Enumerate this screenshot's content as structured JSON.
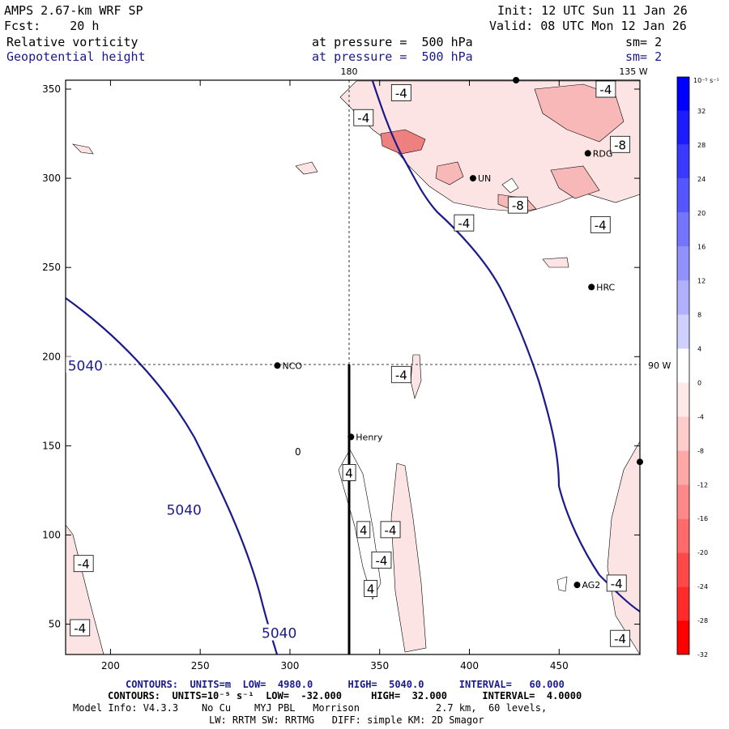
{
  "header": {
    "model": "AMPS 2.67-km WRF SP",
    "fcst": "Fcst:    20 h",
    "init": "Init: 12 UTC Sun 11 Jan 26",
    "valid": "Valid: 08 UTC Mon 12 Jan 26",
    "field1_name": "Relative vorticity",
    "field1_level": "at pressure =  500 hPa",
    "field1_sm": "sm= 2",
    "field2_name": "Geopotential height",
    "field2_level": "at pressure =  500 hPa",
    "field2_sm": "sm= 2"
  },
  "map": {
    "lon_label_top": "180",
    "lon_label_top_right": "135 W",
    "lon_label_right": "90 W",
    "x_ticks": [
      "200",
      "250",
      "300",
      "350",
      "400",
      "450"
    ],
    "y_ticks": [
      "350",
      "300",
      "250",
      "200",
      "150",
      "100",
      "50"
    ],
    "x_range": [
      175,
      495
    ],
    "y_range": [
      33,
      355
    ],
    "stations": [
      {
        "name": "RDG",
        "x": 466,
        "y": 314
      },
      {
        "name": "",
        "x": 426,
        "y": 355
      },
      {
        "name": "UN",
        "x": 402,
        "y": 300
      },
      {
        "name": "HRC",
        "x": 468,
        "y": 239
      },
      {
        "name": "NCO",
        "x": 293,
        "y": 195
      },
      {
        "name": "Henry",
        "x": 334,
        "y": 155
      },
      {
        "name": "AG2",
        "x": 460,
        "y": 72
      },
      {
        "name": "",
        "x": 495,
        "y": 141
      }
    ],
    "height_labels": [
      {
        "text": "5040",
        "x": 186,
        "y": 195
      },
      {
        "text": "5040",
        "x": 241,
        "y": 114
      },
      {
        "text": "5040",
        "x": 294,
        "y": 45
      }
    ],
    "vort_labels": [
      {
        "text": "-4",
        "x": 362,
        "y": 348
      },
      {
        "text": "-4",
        "x": 341,
        "y": 334
      },
      {
        "text": "-8",
        "x": 484,
        "y": 319
      },
      {
        "text": "-4",
        "x": 476,
        "y": 350
      },
      {
        "text": "-8",
        "x": 427,
        "y": 285
      },
      {
        "text": "-4",
        "x": 397,
        "y": 275
      },
      {
        "text": "-4",
        "x": 473,
        "y": 274
      },
      {
        "text": "-4",
        "x": 362,
        "y": 190
      },
      {
        "text": "-4",
        "x": 356,
        "y": 103
      },
      {
        "text": "-4",
        "x": 351,
        "y": 86
      },
      {
        "text": "-4",
        "x": 185,
        "y": 84
      },
      {
        "text": "-4",
        "x": 183,
        "y": 48
      },
      {
        "text": "-4",
        "x": 482,
        "y": 73
      },
      {
        "text": "-4",
        "x": 484,
        "y": 42
      },
      {
        "text": "4",
        "x": 333,
        "y": 135
      },
      {
        "text": "4",
        "x": 341,
        "y": 103
      },
      {
        "text": "4",
        "x": 345,
        "y": 70
      }
    ],
    "zero_label": "0"
  },
  "colorbar": {
    "unit_label": "10⁻⁵ s⁻¹",
    "ticks": [
      "32",
      "28",
      "24",
      "20",
      "16",
      "12",
      "8",
      "4",
      "0",
      "-4",
      "-8",
      "-12",
      "-16",
      "-20",
      "-24",
      "-28",
      "-32"
    ],
    "colors": [
      "#0000ff",
      "#1c1cff",
      "#3a3aff",
      "#5656ff",
      "#7474ff",
      "#9292ff",
      "#b0b0ff",
      "#d0d0ff",
      "#ffffff",
      "#ffe8e8",
      "#ffcccc",
      "#ffa8a8",
      "#ff8888",
      "#ff6a6a",
      "#ff4848",
      "#ff2a2a",
      "#ff0000"
    ]
  },
  "footer": {
    "line1": "CONTOURS:  UNITS=m  LOW=  4980.0      HIGH=  5040.0      INTERVAL=   60.000",
    "line2": "CONTOURS:  UNITS=10⁻⁵ s⁻¹  LOW=  -32.000     HIGH=  32.000      INTERVAL=  4.0000",
    "line3": "Model Info: V4.3.3    No Cu    MYJ PBL   Morrison             2.7 km,  60 levels,",
    "line4": "LW: RRTM SW: RRTMG   DIFF: simple KM: 2D Smagor"
  },
  "colors": {
    "height_contour": "#1a1a8c",
    "vort_fill_light": "#fde4e4",
    "vort_fill_mid": "#f8b8b8",
    "vort_fill_dark": "#ee8080"
  }
}
